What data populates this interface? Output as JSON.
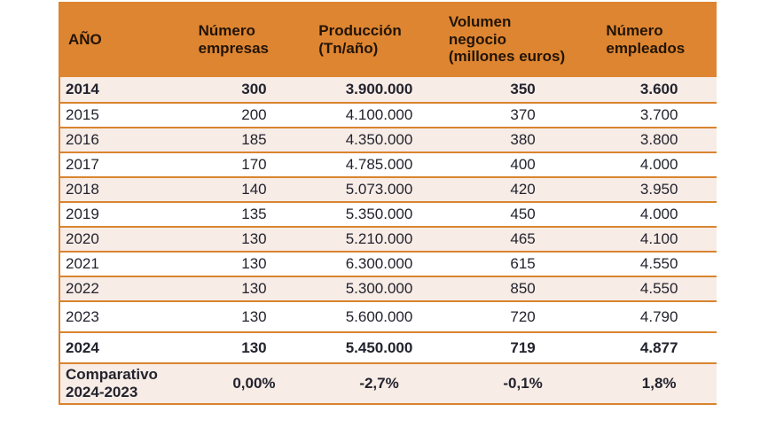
{
  "table": {
    "header": {
      "col_year": "AÑO",
      "col_companies": "Número\nempresas",
      "col_production": "Producción\n(Tn/año)",
      "col_revenue": "Volumen\nnegocio\n(millones euros)",
      "col_employees": "Número\nempleados"
    },
    "rows": [
      {
        "year": "2014",
        "empresas": "300",
        "produccion": "3.900.000",
        "volumen": "350",
        "empleados": "3.600",
        "bold": true,
        "shaded": true,
        "tall": false
      },
      {
        "year": "2015",
        "empresas": "200",
        "produccion": "4.100.000",
        "volumen": "370",
        "empleados": "3.700",
        "bold": false,
        "shaded": false,
        "tall": false
      },
      {
        "year": "2016",
        "empresas": "185",
        "produccion": "4.350.000",
        "volumen": "380",
        "empleados": "3.800",
        "bold": false,
        "shaded": true,
        "tall": false
      },
      {
        "year": "2017",
        "empresas": "170",
        "produccion": "4.785.000",
        "volumen": "400",
        "empleados": "4.000",
        "bold": false,
        "shaded": false,
        "tall": false
      },
      {
        "year": "2018",
        "empresas": "140",
        "produccion": "5.073.000",
        "volumen": "420",
        "empleados": "3.950",
        "bold": false,
        "shaded": true,
        "tall": false
      },
      {
        "year": "2019",
        "empresas": "135",
        "produccion": "5.350.000",
        "volumen": "450",
        "empleados": "4.000",
        "bold": false,
        "shaded": false,
        "tall": false
      },
      {
        "year": "2020",
        "empresas": "130",
        "produccion": "5.210.000",
        "volumen": "465",
        "empleados": "4.100",
        "bold": false,
        "shaded": true,
        "tall": false
      },
      {
        "year": "2021",
        "empresas": "130",
        "produccion": "6.300.000",
        "volumen": "615",
        "empleados": "4.550",
        "bold": false,
        "shaded": false,
        "tall": false
      },
      {
        "year": "2022",
        "empresas": "130",
        "produccion": "5.300.000",
        "volumen": "850",
        "empleados": "4.550",
        "bold": false,
        "shaded": true,
        "tall": false
      },
      {
        "year": "2023",
        "empresas": "130",
        "produccion": "5.600.000",
        "volumen": "720",
        "empleados": "4.790",
        "bold": false,
        "shaded": false,
        "tall": true
      },
      {
        "year": "2024",
        "empresas": "130",
        "produccion": "5.450.000",
        "volumen": "719",
        "empleados": "4.877",
        "bold": true,
        "shaded": false,
        "tall": true
      }
    ],
    "comparative": {
      "label": "Comparativo\n2024-2023",
      "empresas": "0,00%",
      "produccion": "-2,7%",
      "volumen": "-0,1%",
      "empleados": "1,8%"
    }
  },
  "colors": {
    "header_background": "#DE8531",
    "row_separator": "#D9842F",
    "shaded_row_background": "#F7ECE6",
    "header_text": "#221406",
    "data_text": "#23232E"
  },
  "chart_data": {
    "type": "table",
    "title": "",
    "columns": [
      "AÑO",
      "Número empresas",
      "Producción (Tn/año)",
      "Volumen negocio (millones euros)",
      "Número empleados"
    ],
    "rows": [
      [
        "2014",
        300,
        3900000,
        350,
        3600
      ],
      [
        "2015",
        200,
        4100000,
        370,
        3700
      ],
      [
        "2016",
        185,
        4350000,
        380,
        3800
      ],
      [
        "2017",
        170,
        4785000,
        400,
        4000
      ],
      [
        "2018",
        140,
        5073000,
        420,
        3950
      ],
      [
        "2019",
        135,
        5350000,
        450,
        4000
      ],
      [
        "2020",
        130,
        5210000,
        465,
        4100
      ],
      [
        "2021",
        130,
        6300000,
        615,
        4550
      ],
      [
        "2022",
        130,
        5300000,
        850,
        4550
      ],
      [
        "2023",
        130,
        5600000,
        720,
        4790
      ],
      [
        "2024",
        130,
        5450000,
        719,
        4877
      ],
      [
        "Comparativo 2024-2023",
        "0,00%",
        "-2,7%",
        "-0,1%",
        "1,8%"
      ]
    ]
  }
}
